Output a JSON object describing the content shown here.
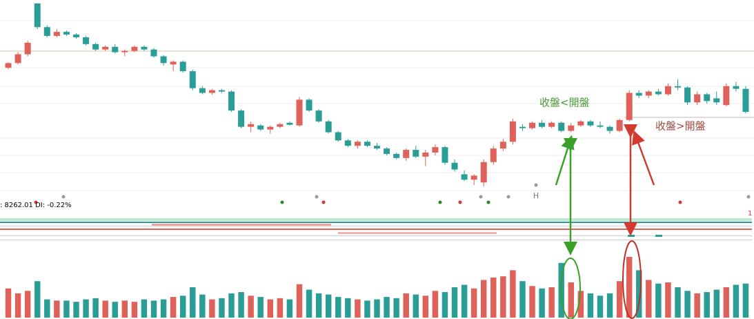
{
  "chart_data": {
    "type": "candlestick",
    "info_text": ": 8262.01  DI: -0.22%",
    "marker_text": "H",
    "corner_text": "1",
    "annotations": [
      "收盤<開盤",
      "收盤>開盤"
    ],
    "up_color": "#e0605a",
    "down_color": "#2a9d96",
    "volume_ma_color": "#e8a33a",
    "ylim": [
      25,
      305
    ],
    "volume_ylim": [
      0,
      100
    ],
    "open": [
      205,
      212,
      225,
      300,
      265,
      252,
      258,
      254,
      250,
      240,
      232,
      236,
      228,
      230,
      236,
      232,
      222,
      210,
      214,
      200,
      175,
      168,
      172,
      170,
      142,
      118,
      120,
      114,
      118,
      124,
      120,
      158,
      142,
      126,
      110,
      98,
      90,
      96,
      90,
      86,
      78,
      72,
      84,
      74,
      80,
      88,
      65,
      48,
      40,
      36,
      66,
      86,
      96,
      118,
      116,
      124,
      118,
      124,
      112,
      120,
      126,
      120,
      118,
      112,
      128,
      168,
      164,
      170,
      166,
      178,
      176,
      154,
      166,
      160,
      150,
      178,
      174
    ],
    "high": [
      213,
      228,
      245,
      300,
      268,
      262,
      260,
      256,
      252,
      242,
      238,
      240,
      232,
      238,
      238,
      234,
      224,
      216,
      216,
      202,
      178,
      174,
      174,
      172,
      144,
      126,
      122,
      120,
      124,
      126,
      162,
      160,
      144,
      128,
      112,
      100,
      98,
      98,
      94,
      88,
      80,
      86,
      90,
      84,
      92,
      90,
      70,
      54,
      48,
      70,
      90,
      100,
      130,
      122,
      126,
      128,
      126,
      126,
      124,
      128,
      128,
      126,
      120,
      130,
      172,
      172,
      172,
      174,
      182,
      188,
      178,
      170,
      168,
      170,
      182,
      184,
      178
    ],
    "low": [
      203,
      210,
      222,
      262,
      250,
      250,
      252,
      248,
      238,
      230,
      230,
      226,
      222,
      228,
      230,
      220,
      208,
      200,
      198,
      172,
      166,
      165,
      168,
      140,
      116,
      110,
      112,
      108,
      116,
      120,
      118,
      140,
      124,
      108,
      96,
      88,
      86,
      88,
      84,
      76,
      70,
      68,
      72,
      60,
      76,
      62,
      52,
      38,
      32,
      30,
      62,
      82,
      92,
      112,
      114,
      116,
      116,
      110,
      110,
      118,
      118,
      116,
      108,
      110,
      126,
      160,
      160,
      164,
      164,
      172,
      150,
      150,
      152,
      150,
      148,
      170,
      138
    ],
    "close": [
      212,
      225,
      242,
      265,
      252,
      258,
      254,
      250,
      240,
      232,
      236,
      228,
      230,
      236,
      232,
      222,
      212,
      214,
      200,
      175,
      168,
      172,
      170,
      142,
      118,
      122,
      114,
      118,
      122,
      121,
      158,
      142,
      126,
      110,
      98,
      90,
      96,
      90,
      86,
      78,
      72,
      84,
      74,
      80,
      88,
      65,
      55,
      40,
      46,
      66,
      86,
      96,
      126,
      116,
      124,
      118,
      124,
      112,
      120,
      126,
      120,
      118,
      112,
      128,
      168,
      164,
      170,
      166,
      178,
      176,
      154,
      166,
      156,
      154,
      178,
      174,
      140
    ],
    "volume": [
      48,
      40,
      44,
      60,
      30,
      28,
      28,
      26,
      30,
      32,
      28,
      26,
      28,
      26,
      30,
      28,
      30,
      34,
      36,
      50,
      38,
      30,
      32,
      40,
      42,
      36,
      34,
      30,
      32,
      30,
      55,
      46,
      40,
      38,
      34,
      32,
      30,
      28,
      30,
      34,
      32,
      40,
      38,
      36,
      44,
      42,
      50,
      54,
      48,
      62,
      66,
      68,
      78,
      60,
      52,
      48,
      50,
      90,
      58,
      44,
      40,
      36,
      40,
      60,
      100,
      78,
      62,
      56,
      58,
      50,
      44,
      40,
      42,
      46,
      50,
      54,
      56
    ]
  }
}
